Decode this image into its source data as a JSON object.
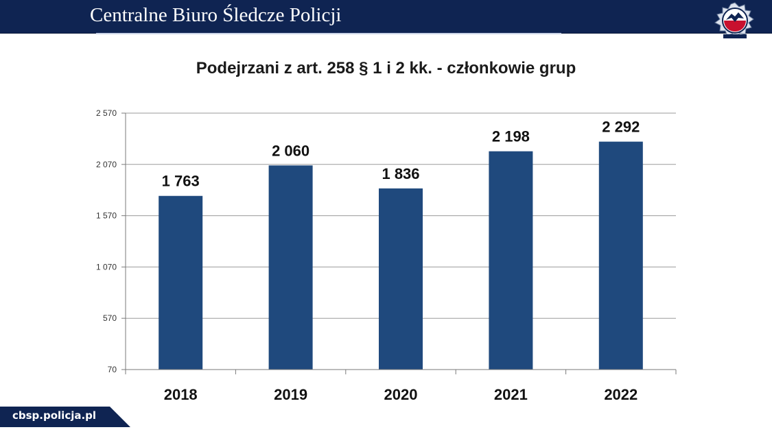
{
  "header": {
    "title": "Centralne Biuro Śledcze Policji",
    "bar_color": "#0f2452"
  },
  "logo": {
    "icon": "cbsp-emblem-icon"
  },
  "footer": {
    "url": "cbsp.policja.pl"
  },
  "chart_data": {
    "type": "bar",
    "title": "Podejrzani z art. 258 § 1 i 2 kk. - członkowie grup",
    "xlabel": "",
    "ylabel": "",
    "categories": [
      "2018",
      "2019",
      "2020",
      "2021",
      "2022"
    ],
    "values": [
      1763,
      2060,
      1836,
      2198,
      2292
    ],
    "value_labels": [
      "1 763",
      "2 060",
      "1 836",
      "2 198",
      "2 292"
    ],
    "ylim": [
      70,
      2570
    ],
    "y_ticks": [
      70,
      570,
      1070,
      1570,
      2070,
      2570
    ],
    "y_tick_labels": [
      "70",
      "570",
      "1 070",
      "1 570",
      "2 070",
      "2 570"
    ],
    "grid": true,
    "legend": "none",
    "bar_color": "#1f497d"
  }
}
